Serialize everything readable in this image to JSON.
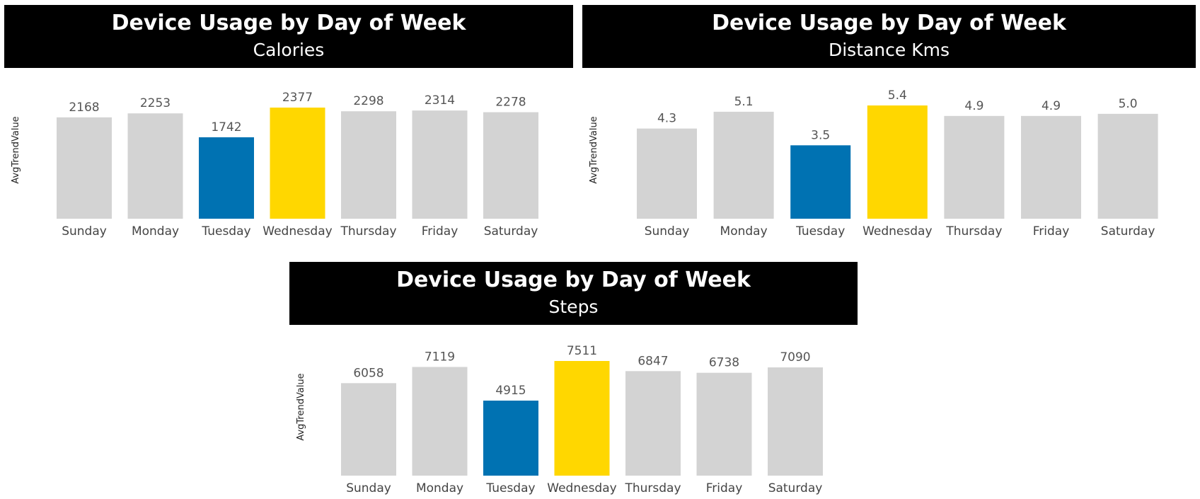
{
  "panels": [
    {
      "title": "Device Usage by Day of Week",
      "subtitle": "Calories"
    },
    {
      "title": "Device Usage by Day of Week",
      "subtitle": "Distance Kms"
    },
    {
      "title": "Device Usage by Day of Week",
      "subtitle": "Steps"
    }
  ],
  "colors": {
    "default_bar": "#d3d3d3",
    "lowest_bar": "#0072b2",
    "highest_bar": "#ffd700",
    "header_bg": "#000000",
    "header_text": "#ffffff"
  },
  "chart_data": [
    {
      "type": "bar",
      "title": "Device Usage by Day of Week",
      "subtitle": "Calories",
      "ylabel": "AvgTrendValue",
      "categories": [
        "Sunday",
        "Monday",
        "Tuesday",
        "Wednesday",
        "Thursday",
        "Friday",
        "Saturday"
      ],
      "values": [
        2168,
        2253,
        1742,
        2377,
        2298,
        2314,
        2278
      ],
      "value_labels": [
        "2168",
        "2253",
        "1742",
        "2377",
        "2298",
        "2314",
        "2278"
      ],
      "ylim": [
        0,
        2377
      ],
      "highlight": {
        "Tuesday": "lowest",
        "Wednesday": "highest"
      }
    },
    {
      "type": "bar",
      "title": "Device Usage by Day of Week",
      "subtitle": "Distance Kms",
      "ylabel": "AvgTrendValue",
      "categories": [
        "Sunday",
        "Monday",
        "Tuesday",
        "Wednesday",
        "Thursday",
        "Friday",
        "Saturday"
      ],
      "values": [
        4.3,
        5.1,
        3.5,
        5.4,
        4.9,
        4.9,
        5.0
      ],
      "value_labels": [
        "4.3",
        "5.1",
        "3.5",
        "5.4",
        "4.9",
        "4.9",
        "5.0"
      ],
      "ylim": [
        0,
        5.4
      ],
      "highlight": {
        "Tuesday": "lowest",
        "Wednesday": "highest"
      }
    },
    {
      "type": "bar",
      "title": "Device Usage by Day of Week",
      "subtitle": "Steps",
      "ylabel": "AvgTrendValue",
      "categories": [
        "Sunday",
        "Monday",
        "Tuesday",
        "Wednesday",
        "Thursday",
        "Friday",
        "Saturday"
      ],
      "values": [
        6058,
        7119,
        4915,
        7511,
        6847,
        6738,
        7090
      ],
      "value_labels": [
        "6058",
        "7119",
        "4915",
        "7511",
        "6847",
        "6738",
        "7090"
      ],
      "ylim": [
        0,
        7511
      ],
      "highlight": {
        "Tuesday": "lowest",
        "Wednesday": "highest"
      }
    }
  ]
}
